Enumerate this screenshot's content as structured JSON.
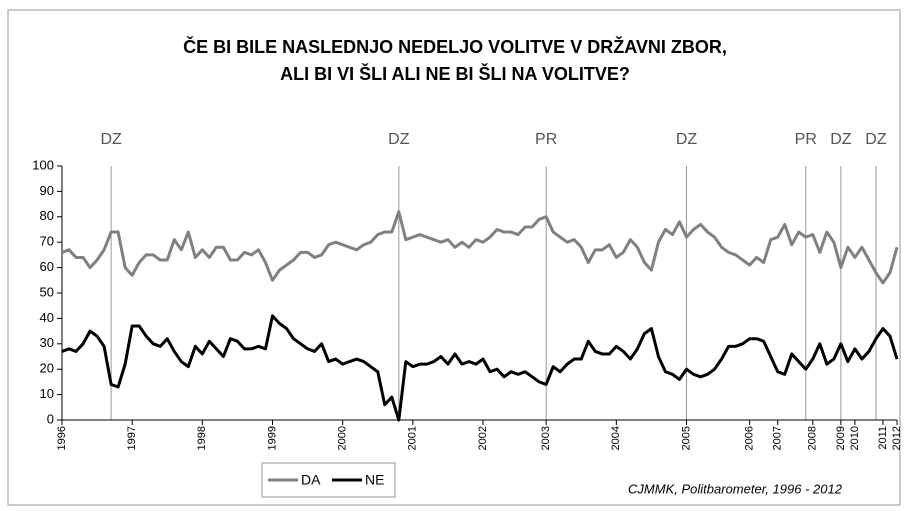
{
  "chart_data": {
    "type": "line",
    "title_lines": [
      "ČE BI BILE NASLEDNJO NEDELJO VOLITVE V DRŽAVNI ZBOR,",
      "ALI BI VI ŠLI ALI NE BI ŠLI NA VOLITVE?"
    ],
    "source": "CJMMK, Politbarometer, 1996 - 2012",
    "categories": [
      "1996",
      null,
      null,
      null,
      null,
      null,
      null,
      null,
      null,
      null,
      "1997",
      null,
      null,
      null,
      null,
      null,
      null,
      null,
      null,
      null,
      "1998",
      null,
      null,
      null,
      null,
      null,
      null,
      null,
      null,
      null,
      "1999",
      null,
      null,
      null,
      null,
      null,
      null,
      null,
      null,
      null,
      "2000",
      null,
      null,
      null,
      null,
      null,
      null,
      null,
      null,
      null,
      "2001",
      null,
      null,
      null,
      null,
      null,
      null,
      null,
      null,
      null,
      "2002",
      null,
      null,
      null,
      null,
      null,
      null,
      null,
      null,
      "2003",
      null,
      null,
      null,
      null,
      null,
      null,
      null,
      null,
      null,
      "2004",
      null,
      null,
      null,
      null,
      null,
      null,
      null,
      null,
      null,
      "2005",
      null,
      null,
      null,
      null,
      null,
      null,
      null,
      null,
      "2006",
      null,
      null,
      null,
      "2007",
      null,
      null,
      null,
      null,
      "2008",
      null,
      null,
      null,
      "2009",
      null,
      "2010",
      null,
      null,
      null,
      "2011",
      null,
      "2012"
    ],
    "series": [
      {
        "name": "DA",
        "color": "#808080",
        "values": [
          66,
          67,
          64,
          64,
          60,
          63,
          67,
          74,
          74,
          60,
          57,
          62,
          65,
          65,
          63,
          63,
          71,
          67,
          74,
          64,
          67,
          64,
          68,
          68,
          63,
          63,
          66,
          65,
          67,
          62,
          55,
          59,
          61,
          63,
          66,
          66,
          64,
          65,
          69,
          70,
          69,
          68,
          67,
          69,
          70,
          73,
          74,
          74,
          82,
          71,
          72,
          73,
          72,
          71,
          70,
          71,
          68,
          70,
          68,
          71,
          70,
          72,
          75,
          74,
          74,
          73,
          76,
          76,
          79,
          80,
          74,
          72,
          70,
          71,
          68,
          62,
          67,
          67,
          69,
          64,
          66,
          71,
          68,
          62,
          59,
          70,
          75,
          73,
          78,
          72,
          75,
          77,
          74,
          72,
          68,
          66,
          65,
          63,
          61,
          64,
          62,
          71,
          72,
          77,
          69,
          74,
          72,
          73,
          66,
          74,
          70,
          60,
          68,
          64,
          68,
          63,
          58,
          54,
          58,
          68
        ]
      },
      {
        "name": "NE",
        "color": "#000000",
        "values": [
          27,
          28,
          27,
          30,
          35,
          33,
          29,
          14,
          13,
          22,
          37,
          37,
          33,
          30,
          29,
          32,
          27,
          23,
          21,
          29,
          26,
          31,
          28,
          25,
          32,
          31,
          28,
          28,
          29,
          28,
          41,
          38,
          36,
          32,
          30,
          28,
          27,
          30,
          23,
          24,
          22,
          23,
          24,
          23,
          21,
          19,
          6,
          9,
          0,
          23,
          21,
          22,
          22,
          23,
          25,
          22,
          26,
          22,
          23,
          22,
          24,
          19,
          20,
          17,
          19,
          18,
          19,
          17,
          15,
          14,
          21,
          19,
          22,
          24,
          24,
          31,
          27,
          26,
          26,
          29,
          27,
          24,
          28,
          34,
          36,
          25,
          19,
          18,
          16,
          20,
          18,
          17,
          18,
          20,
          24,
          29,
          29,
          30,
          32,
          32,
          31,
          25,
          19,
          18,
          26,
          23,
          20,
          24,
          30,
          22,
          24,
          30,
          23,
          28,
          24,
          27,
          32,
          36,
          33,
          24
        ]
      }
    ],
    "annotations": [
      {
        "text": "DZ",
        "category": 7
      },
      {
        "text": "DZ",
        "category": 48
      },
      {
        "text": "PR",
        "category": 69
      },
      {
        "text": "DZ",
        "category": 89
      },
      {
        "text": "PR",
        "category": 106
      },
      {
        "text": "DZ",
        "category": 111
      },
      {
        "text": "DZ",
        "category": 116
      }
    ],
    "ylim": [
      0,
      100
    ],
    "yticks": [
      0,
      10,
      20,
      30,
      40,
      50,
      60,
      70,
      80,
      90,
      100
    ],
    "grid": false,
    "legend": "bottom"
  }
}
